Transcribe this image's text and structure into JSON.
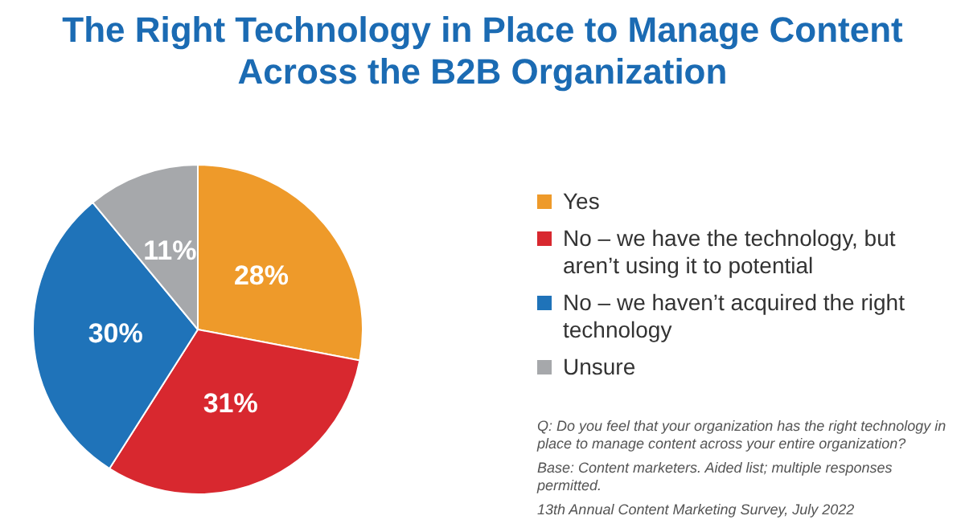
{
  "chart_data": {
    "type": "pie",
    "title": "The Right Technology in Place to Manage Content Across the B2B Organization",
    "categories": [
      "Yes",
      "No – we have the technology, but aren’t using it to potential",
      "No – we haven’t acquired the right technology",
      "Unsure"
    ],
    "values": [
      28,
      31,
      30,
      11
    ],
    "colors": [
      "#ee9a2a",
      "#d8282f",
      "#1f73b9",
      "#a6a8ab"
    ],
    "value_labels": [
      "28%",
      "31%",
      "30%",
      "11%"
    ],
    "legend": "right",
    "annotations": [
      "Q: Do you feel that your organization has the right technology in place to manage content across your entire organization?",
      "Base: Content marketers. Aided list; multiple responses permitted.",
      "13th Annual Content Marketing Survey, July 2022"
    ]
  }
}
